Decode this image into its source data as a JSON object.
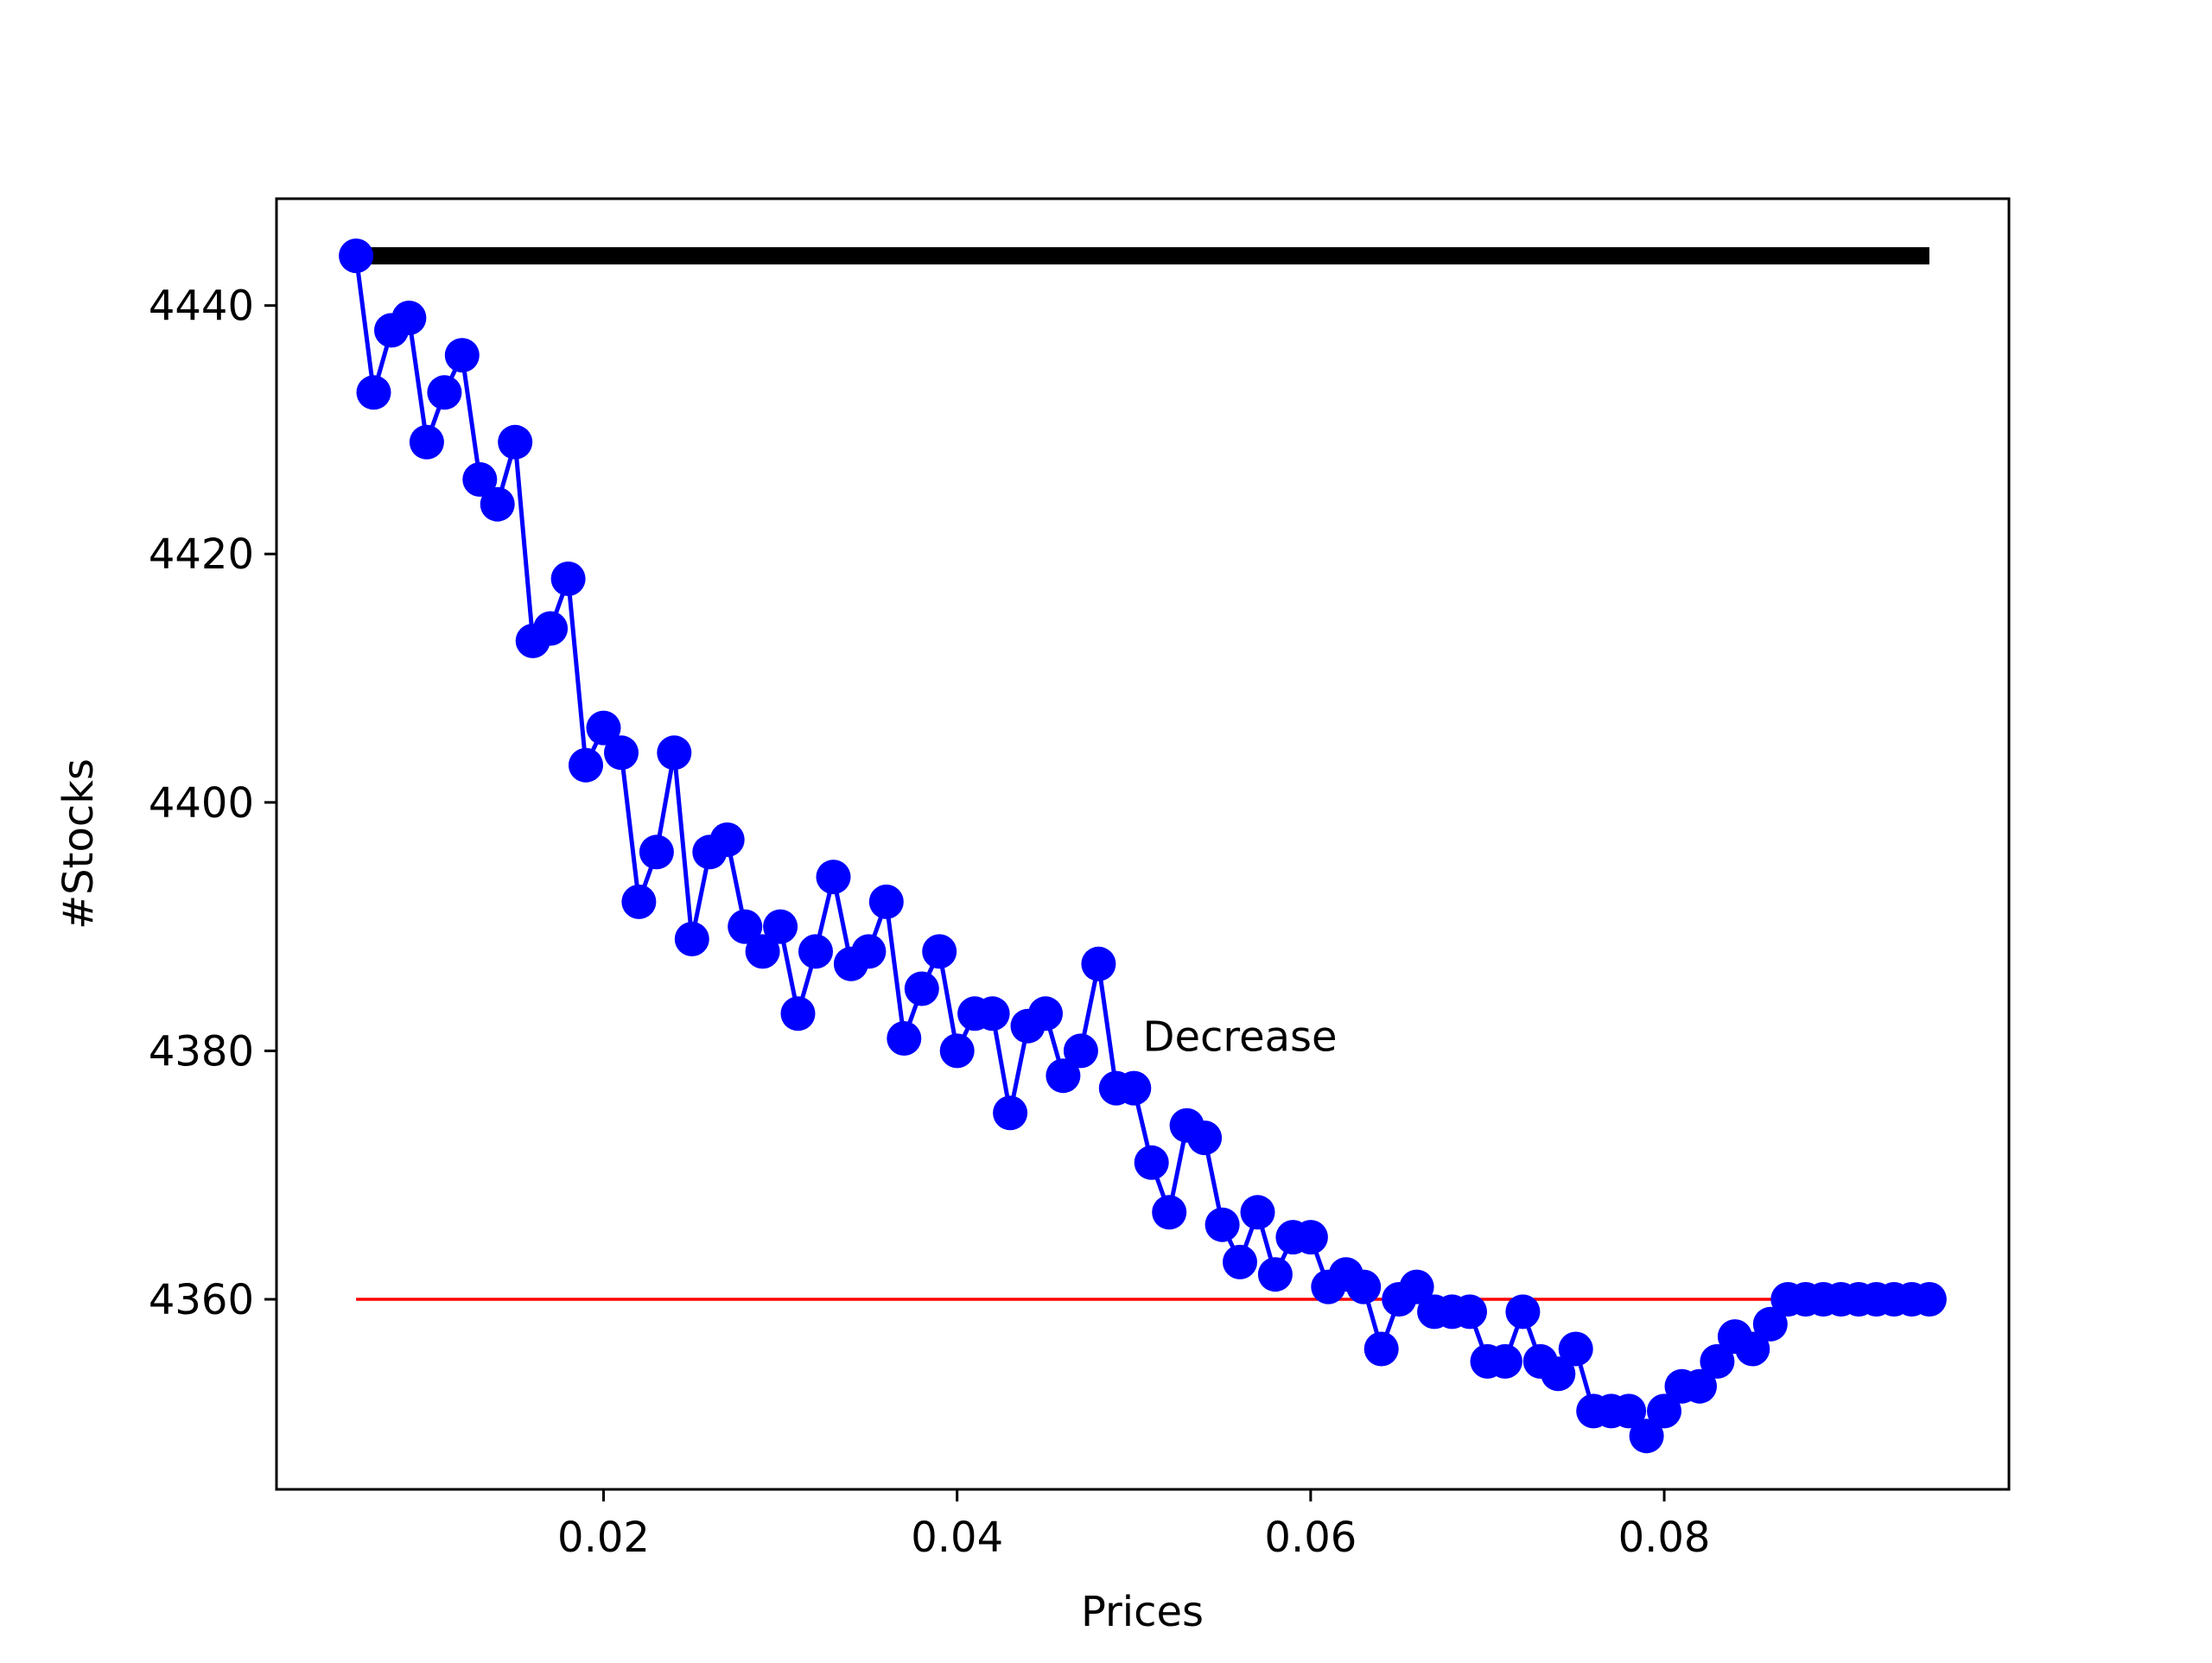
{
  "chart_data": {
    "type": "line",
    "title": "",
    "xlabel": "Prices",
    "ylabel": "#Stocks",
    "xlim": [
      0.0015,
      0.0995
    ],
    "ylim": [
      4344.7,
      4448.6
    ],
    "x_ticks": [
      0.02,
      0.04,
      0.06,
      0.08
    ],
    "x_tick_labels": [
      "0.02",
      "0.04",
      "0.06",
      "0.08"
    ],
    "y_ticks": [
      4360,
      4380,
      4400,
      4420,
      4440
    ],
    "y_tick_labels": [
      "4360",
      "4380",
      "4400",
      "4420",
      "4440"
    ],
    "grid": false,
    "legend": "none",
    "series": [
      {
        "style": "line-with-markers",
        "color": "#0000ff",
        "x": [
          0.006,
          0.007,
          0.008,
          0.009,
          0.01,
          0.011,
          0.012,
          0.013,
          0.014,
          0.015,
          0.016,
          0.017,
          0.018,
          0.019,
          0.02,
          0.021,
          0.022,
          0.023,
          0.024,
          0.025,
          0.026,
          0.027,
          0.028,
          0.029,
          0.03,
          0.031,
          0.032,
          0.033,
          0.034,
          0.035,
          0.036,
          0.037,
          0.038,
          0.039,
          0.04,
          0.041,
          0.042,
          0.043,
          0.044,
          0.045,
          0.046,
          0.047,
          0.048,
          0.049,
          0.05,
          0.051,
          0.052,
          0.053,
          0.054,
          0.055,
          0.056,
          0.057,
          0.058,
          0.059,
          0.06,
          0.061,
          0.062,
          0.063,
          0.064,
          0.065,
          0.066,
          0.067,
          0.068,
          0.069,
          0.07,
          0.071,
          0.072,
          0.073,
          0.074,
          0.075,
          0.076,
          0.077,
          0.078,
          0.079,
          0.08,
          0.081,
          0.082,
          0.083,
          0.084,
          0.085,
          0.086,
          0.087,
          0.088,
          0.089,
          0.09,
          0.091,
          0.092,
          0.093,
          0.094,
          0.095
        ],
        "y": [
          4444,
          4433,
          4438,
          4439,
          4429,
          4433,
          4436,
          4426,
          4424,
          4429,
          4413,
          4414,
          4418,
          4403,
          4406,
          4404,
          4392,
          4396,
          4404,
          4389,
          4396,
          4397,
          4390,
          4388,
          4390,
          4383,
          4388,
          4394,
          4387,
          4388,
          4392,
          4381,
          4385,
          4388,
          4380,
          4383,
          4383,
          4375,
          4382,
          4383,
          4378,
          4380,
          4387,
          4377,
          4377,
          4371,
          4367,
          4374,
          4373,
          4366,
          4363,
          4367,
          4362,
          4365,
          4365,
          4361,
          4362,
          4361,
          4356,
          4360,
          4361,
          4359,
          4359,
          4359,
          4355,
          4355,
          4359,
          4355,
          4354,
          4356,
          4351,
          4351,
          4351,
          4349,
          4351,
          4353,
          4353,
          4355,
          4357,
          4356,
          4358,
          4360,
          4360,
          4360,
          4360,
          4360,
          4360,
          4360,
          4360,
          4360
        ]
      },
      {
        "style": "line",
        "color": "#000000",
        "x": [
          0.006,
          0.095
        ],
        "y": [
          4444,
          4444
        ]
      },
      {
        "style": "line",
        "color": "#ff0000",
        "x": [
          0.006,
          0.095
        ],
        "y": [
          4360,
          4360
        ]
      }
    ],
    "annotations": [
      {
        "text": "Decrease",
        "x": 0.0505,
        "y": 4380
      }
    ]
  }
}
